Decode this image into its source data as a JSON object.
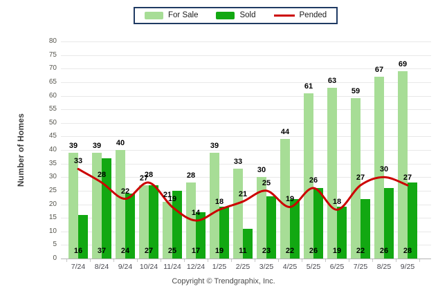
{
  "legend": {
    "for_sale_label": "For Sale",
    "sold_label": "Sold",
    "pended_label": "Pended"
  },
  "y_axis_title": "Number of Homes",
  "footer": {
    "copyright": "Copyright © Trendgraphix, Inc."
  },
  "colors": {
    "for_sale": "#A7DD96",
    "sold": "#12A812",
    "pended": "#CC0000",
    "value_label": "#000000",
    "axis_text": "#55544C",
    "x_label_text": "#47474F",
    "grid": "#E8E8E8",
    "axis_line": "#B3B3B3",
    "tick_mark": "#C8C8C8",
    "legend_border": "#1F3A63"
  },
  "chart_data": {
    "type": "bar",
    "title": "",
    "xlabel": "",
    "ylabel": "Number of Homes",
    "categories": [
      "7/24",
      "8/24",
      "9/24",
      "10/24",
      "11/24",
      "12/24",
      "1/25",
      "2/25",
      "3/25",
      "4/25",
      "5/25",
      "6/25",
      "7/25",
      "8/25",
      "9/25"
    ],
    "series": [
      {
        "name": "For Sale",
        "type": "bar",
        "color": "#A7DD96",
        "values": [
          39,
          39,
          40,
          27,
          21,
          28,
          39,
          33,
          30,
          44,
          61,
          63,
          59,
          67,
          69
        ]
      },
      {
        "name": "Sold",
        "type": "bar",
        "color": "#12A812",
        "values": [
          16,
          37,
          24,
          27,
          25,
          17,
          19,
          11,
          23,
          22,
          26,
          19,
          22,
          26,
          28
        ]
      },
      {
        "name": "Pended",
        "type": "line",
        "color": "#CC0000",
        "values": [
          33,
          28,
          22,
          28,
          19,
          14,
          18,
          21,
          25,
          19,
          26,
          18,
          27,
          30,
          27
        ]
      }
    ],
    "ylim": [
      0,
      80
    ],
    "y_ticks": [
      0,
      5,
      10,
      15,
      20,
      25,
      30,
      35,
      40,
      45,
      50,
      55,
      60,
      65,
      70,
      75,
      80
    ],
    "grid": "horizontal",
    "legend_position": "top-center",
    "data_labels": "all"
  }
}
